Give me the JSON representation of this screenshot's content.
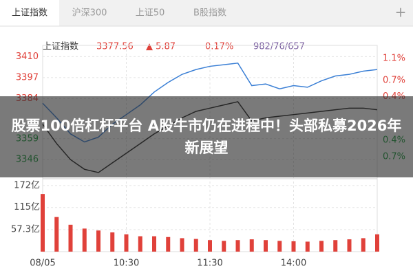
{
  "tabs": [
    "上证指数",
    "沪深300",
    "上证50",
    "B股指数",
    "+"
  ],
  "header": {
    "name": "上证指数",
    "price": "3377.56",
    "change": "▲ 5.87",
    "percent": "0.17%",
    "breadth": "982/76/657"
  },
  "banner": "股票100倍杠杆平台 A股牛市仍在进程中！头部私募2026年新展望",
  "chart_data": {
    "type": "line",
    "categories": [
      "08/05",
      null,
      null,
      null,
      null,
      null,
      "10:30",
      null,
      null,
      null,
      null,
      null,
      "11:30",
      null,
      null,
      null,
      null,
      null,
      "14:00",
      null,
      null,
      null,
      null,
      null,
      null
    ],
    "series": [
      {
        "color": "#3a7fd5",
        "values": [
          3381,
          3372,
          3362,
          3357,
          3360,
          3368,
          3374,
          3380,
          3388,
          3394,
          3399,
          3402,
          3404,
          3405,
          3406,
          3392,
          3393,
          3390,
          3392,
          3391,
          3395,
          3398,
          3399,
          3401,
          3402
        ]
      },
      {
        "color": "#222222",
        "values": [
          3368,
          3356,
          3346,
          3340,
          3338,
          3344,
          3350,
          3356,
          3362,
          3367,
          3372,
          3376,
          3378,
          3380,
          3382,
          3370,
          3372,
          3373,
          3374,
          3375,
          3376,
          3377,
          3378,
          3378,
          3377
        ]
      }
    ],
    "ylim": [
      3335,
      3417
    ],
    "yticks": [
      3346,
      3359,
      3384,
      3397,
      3410
    ],
    "y2lim": [
      -1.08,
      1.34
    ],
    "y2ticks": [
      {
        "value": -0.7,
        "label": "0.7%"
      },
      {
        "value": -0.4,
        "label": "0.4%"
      },
      {
        "value": 0.4,
        "label": "0.4%"
      },
      {
        "value": 0.7,
        "label": "0.7%"
      },
      {
        "value": 1.1,
        "label": "1.1%"
      }
    ],
    "grid": true,
    "volume": {
      "color": "#e0413a",
      "values": [
        150,
        90,
        70,
        60,
        55,
        50,
        45,
        40,
        40,
        38,
        35,
        33,
        30,
        28,
        30,
        32,
        30,
        28,
        27,
        26,
        28,
        30,
        32,
        35,
        45
      ],
      "ylim": [
        0,
        186
      ],
      "yticks": [
        {
          "value": 57.3,
          "label": "57.3亿"
        },
        {
          "value": 115,
          "label": "115亿"
        },
        {
          "value": 172,
          "label": "172亿"
        }
      ]
    }
  }
}
